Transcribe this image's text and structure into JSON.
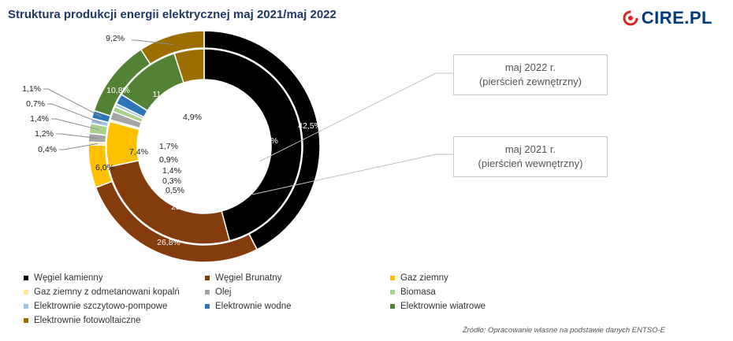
{
  "title": "Struktura produkcji energii elektrycznej maj 2021/maj 2022",
  "logo_text": "CIRE.PL",
  "source": "Źródło: Opracowanie własne na podstawie danych ENTSO-E",
  "callouts": {
    "outer": {
      "line1": "maj 2022 r.",
      "line2": "(pierścień zewnętrzny)"
    },
    "inner": {
      "line1": "maj 2021 r.",
      "line2": "(pierścień wewnętrzny)"
    }
  },
  "chart_data": {
    "type": "pie",
    "subtype": "doughnut",
    "title": "Struktura produkcji energii elektrycznej maj 2021/maj 2022",
    "categories": [
      "Węgiel kamienny",
      "Węgiel Brunatny",
      "Gaz  ziemny",
      "Gaz ziemny z odmetanowani kopalń",
      "Olej",
      "Biomasa",
      "Elektrownie szczytowo-pompowe",
      "Elektrownie wodne",
      "Elektrownie wiatrowe",
      "Elektrownie fotowoltaiczne"
    ],
    "colors": [
      "#000000",
      "#843c0c",
      "#ffc000",
      "#ffe699",
      "#a5a5a5",
      "#a9d18e",
      "#9dc3e6",
      "#2e75b6",
      "#548235",
      "#9c6e00"
    ],
    "series": [
      {
        "name": "maj 2022 r.",
        "ring": "outer",
        "values": [
          42.5,
          26.8,
          6.0,
          0.4,
          1.2,
          1.4,
          0.7,
          1.1,
          10.8,
          9.2
        ],
        "labels": [
          "42,5%",
          "26,8%",
          "6,0%",
          "0,4%",
          "1,2%",
          "1,4%",
          "0,7%",
          "1,1%",
          "10,8%",
          "9,2%"
        ]
      },
      {
        "name": "maj 2021 r.",
        "ring": "inner",
        "values": [
          45.4,
          25.6,
          7.4,
          0.3,
          1.4,
          0.9,
          0.5,
          1.7,
          11.0,
          4.9
        ],
        "labels": [
          "45,4%",
          "25,6%",
          "7,4%",
          "0,3%",
          "1,4%",
          "0,9%",
          "0,5%",
          "1,7%",
          "11,0%",
          "4,9%"
        ]
      }
    ],
    "legend": "bottom"
  }
}
